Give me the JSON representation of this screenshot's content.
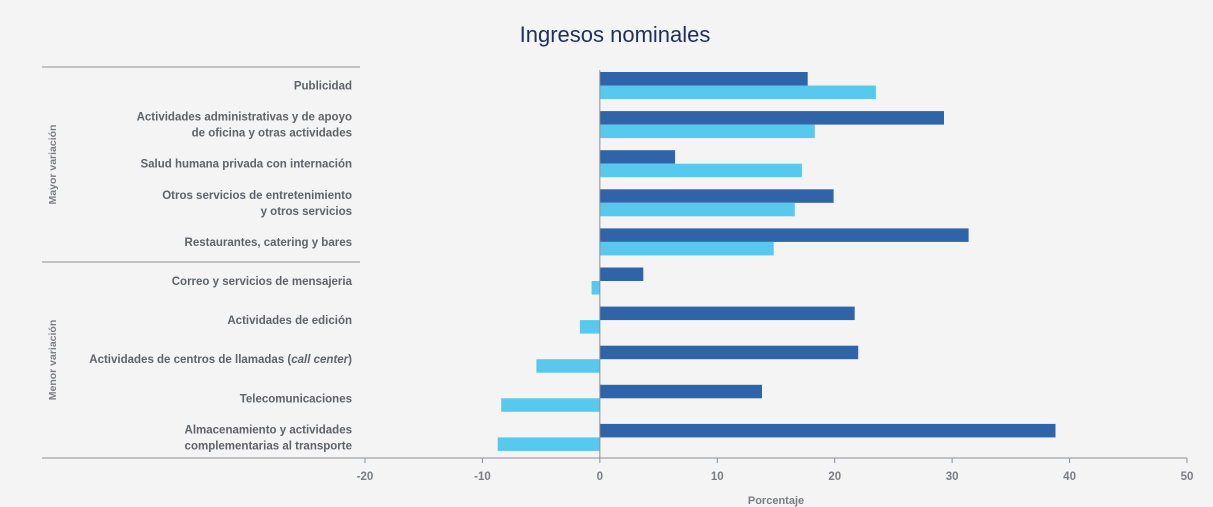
{
  "colors": {
    "background": "#f4f4f5",
    "series_dark": "#2f64a9",
    "series_light": "#58c9ee",
    "text": "#5f6368",
    "axis": "#8c8f94"
  },
  "chart_data": {
    "type": "bar",
    "orientation": "horizontal",
    "title": "Ingresos nominales",
    "xlabel": "Porcentaje",
    "ylabel": "",
    "xlim": [
      -20,
      50
    ],
    "xticks": [
      "-20",
      "-10",
      "0",
      "10",
      "20",
      "30",
      "40",
      "50"
    ],
    "grid": false,
    "legend": "none",
    "groups": [
      {
        "label": "Mayor variación",
        "categories": [
          0,
          1,
          2,
          3,
          4
        ]
      },
      {
        "label": "Menor variación",
        "categories": [
          5,
          6,
          7,
          8,
          9
        ]
      }
    ],
    "categories": [
      [
        "Publicidad"
      ],
      [
        "Actividades administrativas y de apoyo",
        "de oficina y otras actividades"
      ],
      [
        "Salud humana privada con internación"
      ],
      [
        "Otros servicios de entretenimiento",
        "y otros servicios"
      ],
      [
        "Restaurantes, catering y bares"
      ],
      [
        "Correo y servicios de mensajeria"
      ],
      [
        "Actividades de edición"
      ],
      [
        "Actividades de centros de llamadas (call center)"
      ],
      [
        "Telecomunicaciones"
      ],
      [
        "Almacenamiento y actividades",
        "complementarias al transporte"
      ]
    ],
    "series": [
      {
        "color": "#2f64a9",
        "values": [
          17.7,
          29.3,
          6.4,
          19.9,
          31.4,
          3.7,
          21.7,
          22.0,
          13.8,
          38.8
        ]
      },
      {
        "color": "#58c9ee",
        "values": [
          23.5,
          18.3,
          17.2,
          16.6,
          14.8,
          -0.7,
          -1.7,
          -5.4,
          -8.4,
          -8.7
        ]
      }
    ]
  }
}
